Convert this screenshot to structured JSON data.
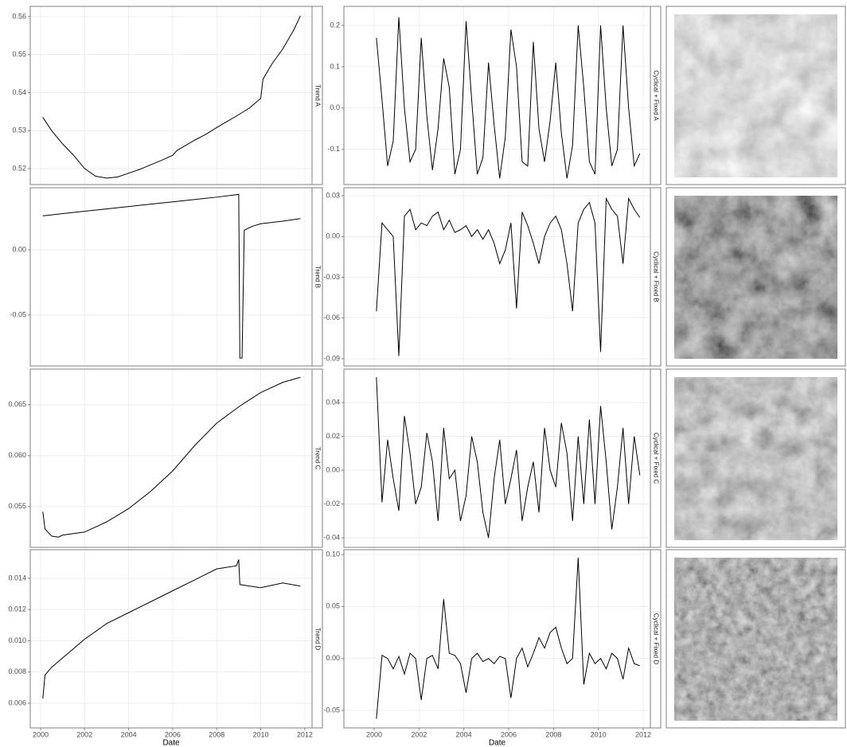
{
  "chart_data": [
    {
      "type": "line",
      "strip_label": "Trend A",
      "color": "#000000",
      "grid": true,
      "x": [
        2000.1,
        2000.5,
        2001,
        2001.5,
        2002,
        2002.5,
        2003,
        2003.5,
        2004,
        2004.5,
        2005,
        2005.5,
        2006,
        2006.2,
        2006.5,
        2007,
        2007.5,
        2008,
        2008.5,
        2009,
        2009.5,
        2010,
        2010.1,
        2010.5,
        2011,
        2011.5,
        2011.8
      ],
      "values": [
        0.5335,
        0.53,
        0.5265,
        0.5235,
        0.52,
        0.518,
        0.5175,
        0.5178,
        0.5188,
        0.5198,
        0.521,
        0.5222,
        0.5235,
        0.5248,
        0.5258,
        0.5275,
        0.529,
        0.5308,
        0.5325,
        0.5342,
        0.536,
        0.5385,
        0.5435,
        0.5475,
        0.5515,
        0.5565,
        0.5602
      ],
      "xlim": [
        1999.53,
        2012.33
      ],
      "xticks": [
        2000,
        2002,
        2004,
        2006,
        2008,
        2010,
        2012
      ],
      "ylim": [
        0.5158,
        0.5627
      ],
      "yticks": [
        0.52,
        0.53,
        0.54,
        0.55,
        0.56
      ]
    },
    {
      "type": "line",
      "strip_label": "Trend B",
      "color": "#000000",
      "grid": true,
      "x": [
        2000.1,
        2001,
        2002,
        2003,
        2004,
        2005,
        2006,
        2007,
        2008,
        2009.0,
        2009.05,
        2009.15,
        2009.25,
        2009.6,
        2010,
        2011,
        2011.8
      ],
      "values": [
        0.026,
        0.0278,
        0.0296,
        0.0314,
        0.0332,
        0.035,
        0.0368,
        0.0386,
        0.0404,
        0.0425,
        -0.083,
        -0.083,
        0.015,
        0.018,
        0.02,
        0.022,
        0.024
      ],
      "xlim": [
        1999.53,
        2012.33
      ],
      "xticks": [
        2000,
        2002,
        2004,
        2006,
        2008,
        2010,
        2012
      ],
      "ylim": [
        -0.089,
        0.0476
      ],
      "yticks": [
        {
          "value": 0,
          "label": "0.00"
        },
        -0.05
      ]
    },
    {
      "type": "line",
      "strip_label": "Trend C",
      "color": "#000000",
      "grid": true,
      "x": [
        2000.1,
        2000.2,
        2000.5,
        2000.8,
        2001,
        2002,
        2003,
        2004,
        2005,
        2006,
        2007,
        2008,
        2009,
        2010,
        2011,
        2011.8
      ],
      "values": [
        0.0545,
        0.0528,
        0.0521,
        0.052,
        0.0522,
        0.0525,
        0.0535,
        0.0548,
        0.0565,
        0.0585,
        0.061,
        0.0632,
        0.0648,
        0.0662,
        0.0672,
        0.0677
      ],
      "xlim": [
        1999.53,
        2012.33
      ],
      "xticks": [
        2000,
        2002,
        2004,
        2006,
        2008,
        2010,
        2012
      ],
      "ylim": [
        0.051,
        0.0685
      ],
      "yticks": [
        0.055,
        {
          "value": 0.06,
          "label": "0.060"
        },
        0.065
      ]
    },
    {
      "type": "line",
      "strip_label": "Trend D",
      "color": "#000000",
      "grid": true,
      "xlabel": "Date",
      "x": [
        2000.1,
        2000.2,
        2000.5,
        2001,
        2002,
        2003,
        2004,
        2005,
        2006,
        2007,
        2008,
        2008.9,
        2009.0,
        2009.05,
        2009.5,
        2010,
        2011,
        2011.8
      ],
      "values": [
        0.0063,
        0.0078,
        0.0083,
        0.0089,
        0.0101,
        0.0111,
        0.0118,
        0.0125,
        0.0132,
        0.0139,
        0.0146,
        0.0148,
        0.0152,
        0.0136,
        0.0135,
        0.0134,
        0.0137,
        0.0135
      ],
      "xlim": [
        1999.53,
        2012.33
      ],
      "xticks": [
        2000,
        2002,
        2004,
        2006,
        2008,
        2010,
        2012
      ],
      "ylim": [
        0.00442,
        0.01583
      ],
      "yticks": [
        0.006,
        0.008,
        {
          "value": 0.01,
          "label": "0.010"
        },
        0.012,
        0.014
      ]
    },
    {
      "type": "line",
      "strip_label": "Cyclical + Fixed A",
      "color": "#000000",
      "grid": true,
      "x": [
        2000.1,
        2000.35,
        2000.6,
        2000.85,
        2001.1,
        2001.35,
        2001.6,
        2001.85,
        2002.1,
        2002.35,
        2002.6,
        2002.85,
        2003.1,
        2003.35,
        2003.6,
        2003.85,
        2004.1,
        2004.35,
        2004.6,
        2004.85,
        2005.1,
        2005.35,
        2005.6,
        2005.85,
        2006.1,
        2006.35,
        2006.6,
        2006.85,
        2007.1,
        2007.35,
        2007.6,
        2007.85,
        2008.1,
        2008.35,
        2008.6,
        2008.85,
        2009.1,
        2009.35,
        2009.6,
        2009.85,
        2010.1,
        2010.35,
        2010.6,
        2010.85,
        2011.1,
        2011.35,
        2011.6,
        2011.85
      ],
      "values": [
        0.17,
        0.02,
        -0.14,
        -0.08,
        0.22,
        0.0,
        -0.13,
        -0.1,
        0.17,
        -0.02,
        -0.15,
        -0.05,
        0.12,
        0.05,
        -0.16,
        -0.1,
        0.21,
        0.02,
        -0.16,
        -0.12,
        0.11,
        -0.04,
        -0.17,
        -0.07,
        0.19,
        0.1,
        -0.13,
        -0.14,
        0.16,
        -0.05,
        -0.13,
        -0.03,
        0.11,
        -0.06,
        -0.17,
        -0.09,
        0.2,
        0.05,
        -0.13,
        -0.16,
        0.2,
        0.0,
        -0.14,
        -0.1,
        0.2,
        0.0,
        -0.14,
        -0.11
      ],
      "xlim": [
        1998.65,
        2012.32
      ],
      "xticks": [
        2000,
        2002,
        2004,
        2006,
        2008,
        2010,
        2012
      ],
      "ylim": [
        -0.185,
        0.246
      ],
      "yticks": [
        -0.1,
        {
          "value": 0,
          "label": "0.0"
        },
        0.1,
        0.2
      ]
    },
    {
      "type": "line",
      "strip_label": "Cyclical + Fixed B",
      "color": "#000000",
      "grid": true,
      "x": [
        2000.1,
        2000.35,
        2000.6,
        2000.85,
        2001.1,
        2001.35,
        2001.6,
        2001.85,
        2002.1,
        2002.35,
        2002.6,
        2002.85,
        2003.1,
        2003.35,
        2003.6,
        2003.85,
        2004.1,
        2004.35,
        2004.6,
        2004.85,
        2005.1,
        2005.35,
        2005.6,
        2005.85,
        2006.1,
        2006.35,
        2006.6,
        2006.85,
        2007.1,
        2007.35,
        2007.6,
        2007.85,
        2008.1,
        2008.35,
        2008.6,
        2008.85,
        2009.1,
        2009.35,
        2009.6,
        2009.85,
        2010.1,
        2010.35,
        2010.6,
        2010.85,
        2011.1,
        2011.35,
        2011.6,
        2011.85
      ],
      "values": [
        -0.055,
        0.01,
        0.005,
        0.0,
        -0.088,
        0.015,
        0.02,
        0.005,
        0.01,
        0.008,
        0.015,
        0.018,
        0.005,
        0.012,
        0.003,
        0.005,
        0.008,
        0.0,
        0.005,
        -0.002,
        0.005,
        -0.005,
        -0.02,
        -0.01,
        0.01,
        -0.053,
        0.018,
        0.008,
        -0.005,
        -0.02,
        0.0,
        0.01,
        0.015,
        0.005,
        -0.02,
        -0.055,
        0.01,
        0.02,
        0.025,
        0.01,
        -0.085,
        0.028,
        0.02,
        0.015,
        -0.02,
        0.028,
        0.02,
        0.014
      ],
      "xlim": [
        1998.65,
        2012.32
      ],
      "xticks": [
        2000,
        2002,
        2004,
        2006,
        2008,
        2010,
        2012
      ],
      "ylim": [
        -0.0953,
        0.0359
      ],
      "yticks": [
        -0.09,
        -0.06,
        -0.03,
        {
          "value": 0,
          "label": "0.00"
        },
        0.03
      ]
    },
    {
      "type": "line",
      "strip_label": "Cyclical + Fixed C",
      "color": "#000000",
      "grid": true,
      "x": [
        2000.1,
        2000.35,
        2000.6,
        2000.85,
        2001.1,
        2001.35,
        2001.6,
        2001.85,
        2002.1,
        2002.35,
        2002.6,
        2002.85,
        2003.1,
        2003.35,
        2003.6,
        2003.85,
        2004.1,
        2004.35,
        2004.6,
        2004.85,
        2005.1,
        2005.35,
        2005.6,
        2005.85,
        2006.1,
        2006.35,
        2006.6,
        2006.85,
        2007.1,
        2007.35,
        2007.6,
        2007.85,
        2008.1,
        2008.35,
        2008.6,
        2008.85,
        2009.1,
        2009.35,
        2009.6,
        2009.85,
        2010.1,
        2010.35,
        2010.6,
        2010.85,
        2011.1,
        2011.35,
        2011.6,
        2011.85
      ],
      "values": [
        0.055,
        -0.019,
        0.018,
        -0.005,
        -0.024,
        0.032,
        0.01,
        -0.02,
        -0.01,
        0.022,
        0.005,
        -0.03,
        0.025,
        -0.005,
        0.0,
        -0.03,
        -0.015,
        0.02,
        0.005,
        -0.025,
        -0.04,
        -0.005,
        0.018,
        -0.02,
        -0.005,
        0.012,
        -0.03,
        -0.01,
        0.005,
        -0.025,
        0.025,
        0.0,
        -0.01,
        0.028,
        0.01,
        -0.03,
        0.02,
        -0.02,
        0.03,
        -0.02,
        0.038,
        0.005,
        -0.035,
        -0.01,
        0.025,
        -0.02,
        0.02,
        -0.003
      ],
      "xlim": [
        1998.65,
        2012.32
      ],
      "xticks": [
        2000,
        2002,
        2004,
        2006,
        2008,
        2010,
        2012
      ],
      "ylim": [
        -0.0456,
        0.0598
      ],
      "yticks": [
        -0.04,
        -0.02,
        {
          "value": 0,
          "label": "0.00"
        },
        0.02,
        0.04
      ]
    },
    {
      "type": "line",
      "strip_label": "Cyclical + Fixed D",
      "color": "#000000",
      "grid": true,
      "xlabel": "Date",
      "x": [
        2000.1,
        2000.35,
        2000.6,
        2000.85,
        2001.1,
        2001.35,
        2001.6,
        2001.85,
        2002.1,
        2002.35,
        2002.6,
        2002.85,
        2003.1,
        2003.35,
        2003.6,
        2003.85,
        2004.1,
        2004.35,
        2004.6,
        2004.85,
        2005.1,
        2005.35,
        2005.6,
        2005.85,
        2006.1,
        2006.35,
        2006.6,
        2006.85,
        2007.1,
        2007.35,
        2007.6,
        2007.85,
        2008.1,
        2008.35,
        2008.6,
        2008.85,
        2009.1,
        2009.35,
        2009.6,
        2009.85,
        2010.1,
        2010.35,
        2010.6,
        2010.85,
        2011.1,
        2011.35,
        2011.6,
        2011.85
      ],
      "values": [
        -0.058,
        0.003,
        0.0,
        -0.01,
        0.002,
        -0.015,
        0.005,
        0.0,
        -0.04,
        0.0,
        0.003,
        -0.01,
        0.057,
        0.005,
        0.003,
        -0.005,
        -0.033,
        0.0,
        0.005,
        -0.003,
        0.0,
        -0.005,
        0.002,
        0.0,
        -0.038,
        0.0,
        0.01,
        -0.008,
        0.005,
        0.02,
        0.01,
        0.025,
        0.03,
        0.01,
        -0.005,
        0.0,
        0.097,
        -0.025,
        0.005,
        -0.005,
        0.0,
        -0.01,
        0.005,
        0.0,
        -0.02,
        0.01,
        -0.005,
        -0.007
      ],
      "xlim": [
        1998.65,
        2012.32
      ],
      "xticks": [
        2000,
        2002,
        2004,
        2006,
        2008,
        2010,
        2012
      ],
      "ylim": [
        -0.0668,
        0.1046
      ],
      "yticks": [
        -0.05,
        {
          "value": 0,
          "label": "0.00"
        },
        0.05,
        {
          "value": 0.1,
          "label": "0.10"
        }
      ]
    }
  ]
}
